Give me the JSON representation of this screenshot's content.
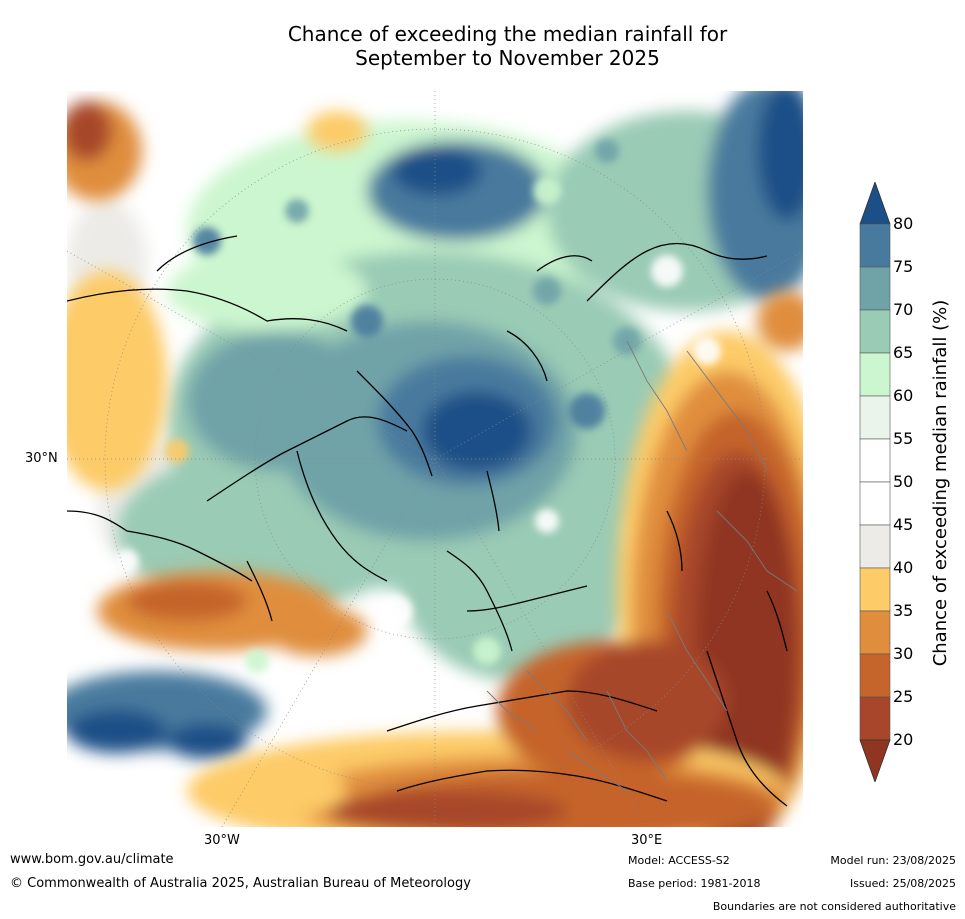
{
  "title": {
    "line1": "Chance of exceeding the median rainfall for",
    "line2": "September to November 2025"
  },
  "map_labels": {
    "lat_30n": "30°N",
    "lon_30w": "30°W",
    "lon_30e": "30°E"
  },
  "colorbar": {
    "label": "Chance of exceeding median rainfall (%)",
    "ticks": [
      "80",
      "75",
      "70",
      "65",
      "60",
      "55",
      "50",
      "45",
      "40",
      "35",
      "30",
      "25",
      "20"
    ],
    "colors": [
      "#1a4f87",
      "#487a9e",
      "#6fa3a8",
      "#9acbb5",
      "#ccf6cf",
      "#ebf4ea",
      "#ffffff",
      "#ffffff",
      "#ecebe7",
      "#fdcb68",
      "#e08e3e",
      "#c5642b",
      "#a7462a",
      "#8f3520"
    ]
  },
  "footer": {
    "website": "www.bom.gov.au/climate",
    "copyright": "© Commonwealth of Australia 2025, Australian Bureau of Meteorology",
    "model": "Model: ACCESS-S2",
    "base_period": "Base period: 1981-2018",
    "model_run": "Model run: 23/08/2025",
    "issued": "Issued: 25/08/2025",
    "disclaimer": "Boundaries are not considered authoritative"
  }
}
